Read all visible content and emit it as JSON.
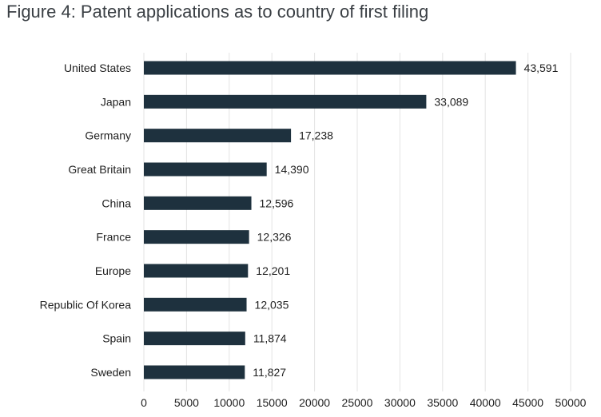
{
  "title": "Figure 4: Patent applications as to country of first filing",
  "chart_data": {
    "type": "bar",
    "orientation": "horizontal",
    "title": "Figure 4: Patent applications as to country of first filing",
    "categories": [
      "United States",
      "Japan",
      "Germany",
      "Great Britain",
      "China",
      "France",
      "Europe",
      "Republic Of Korea",
      "Spain",
      "Sweden"
    ],
    "values": [
      43591,
      33089,
      17238,
      14390,
      12596,
      12326,
      12201,
      12035,
      11874,
      11827
    ],
    "value_labels": [
      "43,591",
      "33,089",
      "17,238",
      "14,390",
      "12,596",
      "12,326",
      "12,201",
      "12,035",
      "11,874",
      "11,827"
    ],
    "xticks": [
      "0",
      "5000",
      "10000",
      "15000",
      "20000",
      "25000",
      "30000",
      "35000",
      "40000",
      "45000",
      "50000"
    ],
    "xlim": [
      0,
      50000
    ],
    "xlabel": "",
    "ylabel": "",
    "grid": "vertical",
    "legend": "none",
    "bar_color": "#1e313e",
    "grid_color": "#e3e3e3"
  }
}
